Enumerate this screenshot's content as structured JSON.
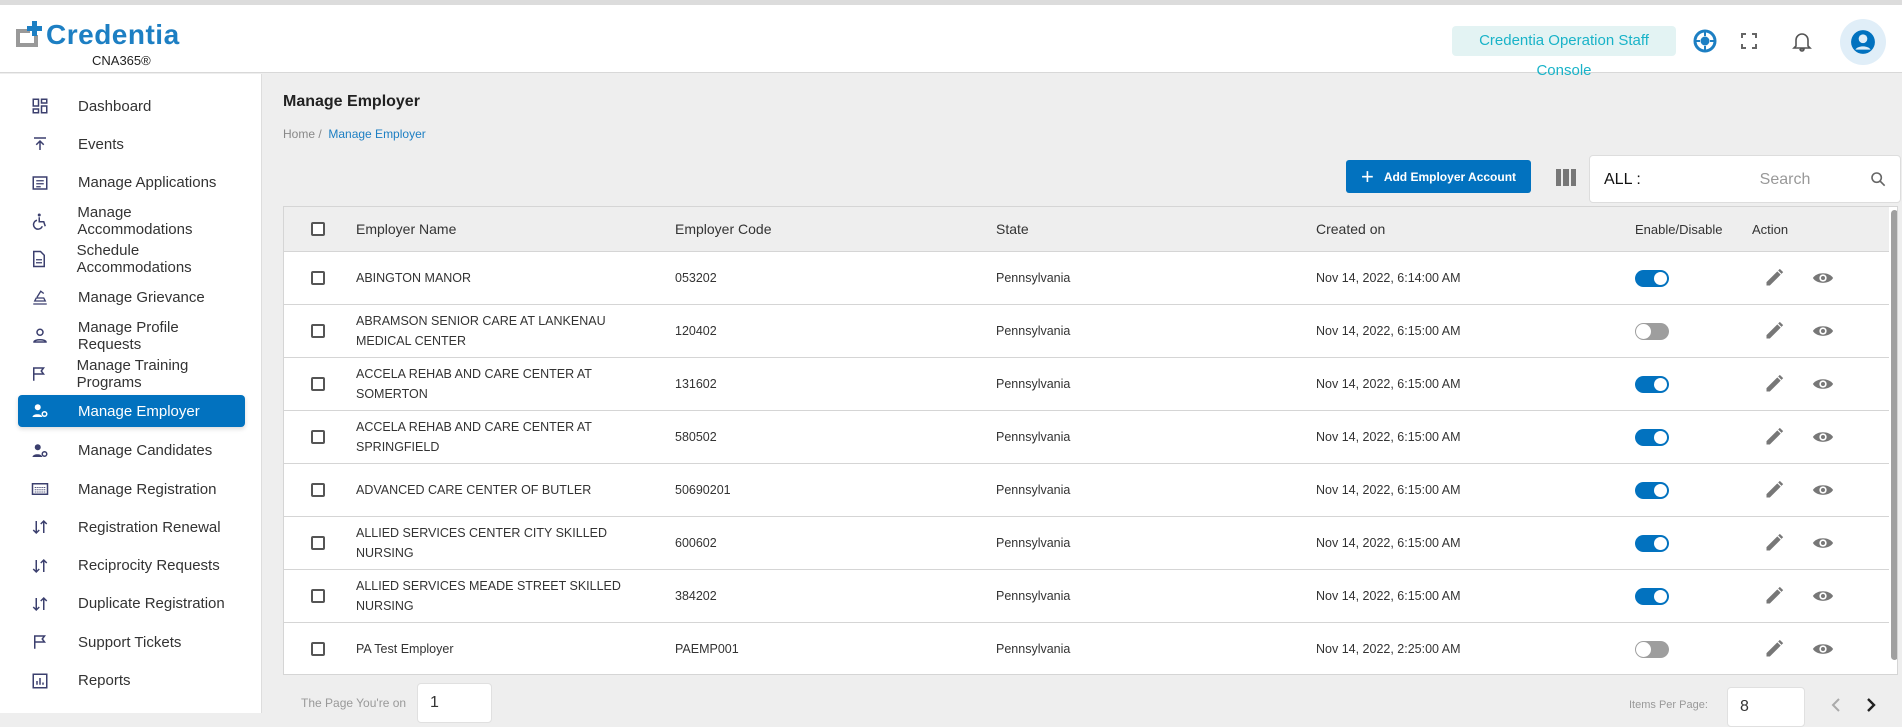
{
  "header": {
    "logo_text": "Credentia",
    "logo_sub": "CNA365®",
    "console_label": "Credentia Operation Staff Console",
    "icons": [
      "lifering-icon",
      "fullscreen-icon",
      "bell-icon",
      "account-icon"
    ]
  },
  "sidebar": {
    "items": [
      {
        "label": "Dashboard",
        "icon": "dashboard-icon"
      },
      {
        "label": "Events",
        "icon": "upload-icon"
      },
      {
        "label": "Manage Applications",
        "icon": "list-icon"
      },
      {
        "label": "Manage Accommodations",
        "icon": "accessible-icon"
      },
      {
        "label": "Schedule Accommodations",
        "icon": "document-icon"
      },
      {
        "label": "Manage Grievance",
        "icon": "grievance-icon"
      },
      {
        "label": "Manage Profile Requests",
        "icon": "person-icon"
      },
      {
        "label": "Manage Training Programs",
        "icon": "flag-icon"
      },
      {
        "label": "Manage Employer",
        "icon": "user-gear-icon",
        "active": true
      },
      {
        "label": "Manage Candidates",
        "icon": "user-gear-icon"
      },
      {
        "label": "Manage Registration",
        "icon": "keyboard-icon"
      },
      {
        "label": "Registration Renewal",
        "icon": "swap-icon"
      },
      {
        "label": "Reciprocity Requests",
        "icon": "swap-icon"
      },
      {
        "label": "Duplicate Registration",
        "icon": "swap-icon"
      },
      {
        "label": "Support Tickets",
        "icon": "flag-icon"
      },
      {
        "label": "Reports",
        "icon": "chart-icon"
      }
    ]
  },
  "page": {
    "title": "Manage Employer",
    "breadcrumb": [
      "Home",
      "Manage Employer"
    ],
    "add_button": "Add Employer Account",
    "filter_label": "ALL :",
    "search_placeholder": "Search"
  },
  "table": {
    "columns": [
      "Employer Name",
      "Employer Code",
      "State",
      "Created on",
      "Enable/Disable",
      "Action"
    ],
    "rows": [
      {
        "name": "ABINGTON MANOR",
        "code": "053202",
        "state": "Pennsylvania",
        "created": "Nov 14, 2022, 6:14:00 AM",
        "enabled": true
      },
      {
        "name": "ABRAMSON SENIOR CARE AT LANKENAU MEDICAL CENTER",
        "code": "120402",
        "state": "Pennsylvania",
        "created": "Nov 14, 2022, 6:15:00 AM",
        "enabled": false
      },
      {
        "name": "ACCELA REHAB AND CARE CENTER AT SOMERTON",
        "code": "131602",
        "state": "Pennsylvania",
        "created": "Nov 14, 2022, 6:15:00 AM",
        "enabled": true
      },
      {
        "name": "ACCELA REHAB AND CARE CENTER AT SPRINGFIELD",
        "code": "580502",
        "state": "Pennsylvania",
        "created": "Nov 14, 2022, 6:15:00 AM",
        "enabled": true
      },
      {
        "name": "ADVANCED CARE CENTER OF BUTLER",
        "code": "50690201",
        "state": "Pennsylvania",
        "created": "Nov 14, 2022, 6:15:00 AM",
        "enabled": true
      },
      {
        "name": "ALLIED SERVICES CENTER CITY SKILLED NURSING",
        "code": "600602",
        "state": "Pennsylvania",
        "created": "Nov 14, 2022, 6:15:00 AM",
        "enabled": true
      },
      {
        "name": "ALLIED SERVICES MEADE STREET SKILLED NURSING",
        "code": "384202",
        "state": "Pennsylvania",
        "created": "Nov 14, 2022, 6:15:00 AM",
        "enabled": true
      },
      {
        "name": "PA Test Employer",
        "code": "PAEMP001",
        "state": "Pennsylvania",
        "created": "Nov 14, 2022, 2:25:00 AM",
        "enabled": false
      }
    ]
  },
  "pagination": {
    "page_label": "The Page You're on",
    "page": "1",
    "per_page_label": "Items Per Page:",
    "per_page": "8"
  },
  "colors": {
    "accent": "#0272bf",
    "badge_text": "#19b3c8",
    "badge_bg": "#e3f3f3"
  }
}
